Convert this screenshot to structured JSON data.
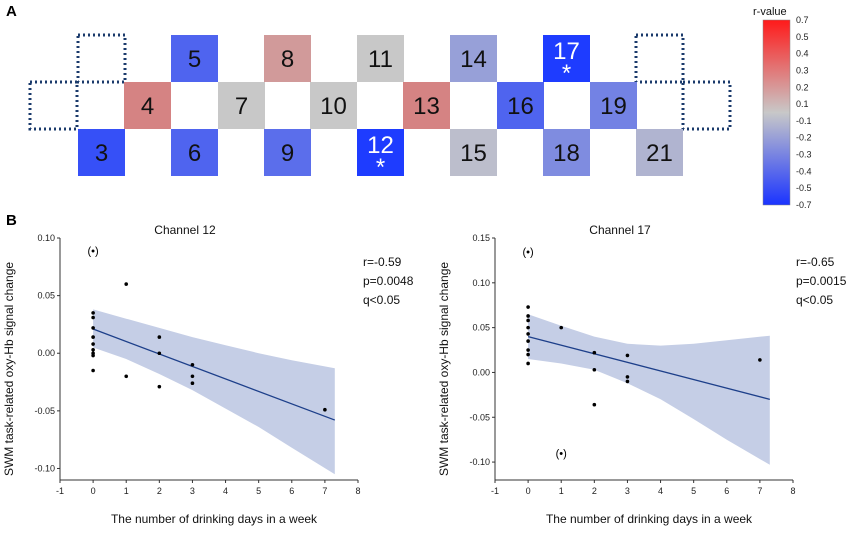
{
  "panel_a": {
    "label": "A",
    "colorbar": {
      "title": "r-value",
      "ticks": [
        "0.7",
        "0.5",
        "0.4",
        "0.3",
        "0.2",
        "0.1",
        "-0.1",
        "-0.2",
        "-0.3",
        "-0.4",
        "-0.5",
        "-0.7"
      ]
    },
    "channels": [
      {
        "id": "3",
        "r": -0.6,
        "star": false
      },
      {
        "id": "4",
        "r": 0.3,
        "star": false
      },
      {
        "id": "5",
        "r": -0.5,
        "star": false
      },
      {
        "id": "6",
        "r": -0.5,
        "star": false
      },
      {
        "id": "7",
        "r": 0.0,
        "star": false
      },
      {
        "id": "8",
        "r": 0.2,
        "star": false
      },
      {
        "id": "9",
        "r": -0.45,
        "star": false
      },
      {
        "id": "10",
        "r": 0.0,
        "star": false
      },
      {
        "id": "11",
        "r": 0.0,
        "star": false
      },
      {
        "id": "12",
        "r": -0.7,
        "star": true,
        "star_text": "*"
      },
      {
        "id": "13",
        "r": 0.3,
        "star": false
      },
      {
        "id": "14",
        "r": -0.2,
        "star": false
      },
      {
        "id": "15",
        "r": -0.05,
        "star": false
      },
      {
        "id": "16",
        "r": -0.5,
        "star": false
      },
      {
        "id": "17",
        "r": -0.7,
        "star": true,
        "star_text": "*"
      },
      {
        "id": "18",
        "r": -0.3,
        "star": false
      },
      {
        "id": "19",
        "r": -0.35,
        "star": false
      },
      {
        "id": "21",
        "r": -0.1,
        "star": false
      }
    ]
  },
  "panel_b": {
    "label": "B"
  },
  "chart_data": [
    {
      "type": "scatter",
      "title": "Channel 12",
      "xlabel": "The number of drinking days in a week",
      "ylabel": "SWM task-related oxy-Hb signal change",
      "xlim": [
        -1,
        8
      ],
      "ylim": [
        -0.11,
        0.1
      ],
      "xticks": [
        -1,
        0,
        1,
        2,
        3,
        4,
        5,
        6,
        7,
        8
      ],
      "yticks": [
        -0.1,
        -0.05,
        0.0,
        0.05,
        0.1
      ],
      "ytick_labels": [
        "-0.10",
        "-0.05",
        "0.00",
        "0.05",
        "0.10"
      ],
      "points": [
        {
          "x": 0,
          "y": 0.035
        },
        {
          "x": 0,
          "y": 0.031
        },
        {
          "x": 0,
          "y": 0.022
        },
        {
          "x": 0,
          "y": 0.014
        },
        {
          "x": 0,
          "y": 0.008
        },
        {
          "x": 0,
          "y": 0.003
        },
        {
          "x": 0,
          "y": 0.0
        },
        {
          "x": 0,
          "y": -0.002
        },
        {
          "x": 0,
          "y": -0.015
        },
        {
          "x": 1,
          "y": 0.06
        },
        {
          "x": 1,
          "y": -0.02
        },
        {
          "x": 2,
          "y": 0.014
        },
        {
          "x": 2,
          "y": 0.0
        },
        {
          "x": 2,
          "y": -0.029
        },
        {
          "x": 3,
          "y": -0.01
        },
        {
          "x": 3,
          "y": -0.02
        },
        {
          "x": 3,
          "y": -0.026
        },
        {
          "x": 7,
          "y": -0.049
        }
      ],
      "outliers": [
        {
          "x": 0,
          "y": 0.089,
          "label": "(•)"
        }
      ],
      "fit_line": {
        "x": [
          0,
          7.3
        ],
        "y": [
          0.021,
          -0.058
        ]
      },
      "ci_upper": {
        "x": [
          0,
          1,
          2,
          3,
          4,
          5,
          6,
          7.3
        ],
        "y": [
          0.038,
          0.03,
          0.022,
          0.014,
          0.007,
          0.0,
          -0.006,
          -0.013
        ]
      },
      "ci_lower": {
        "x": [
          0,
          1,
          2,
          3,
          4,
          5,
          6,
          7.3
        ],
        "y": [
          0.005,
          -0.005,
          -0.018,
          -0.032,
          -0.048,
          -0.064,
          -0.082,
          -0.105
        ]
      },
      "stats": [
        "r=-0.59",
        "p=0.0048",
        "q<0.05"
      ]
    },
    {
      "type": "scatter",
      "title": "Channel 17",
      "xlabel": "The number of drinking days in a week",
      "ylabel": "SWM task-related oxy-Hb signal change",
      "xlim": [
        -1,
        8
      ],
      "ylim": [
        -0.12,
        0.15
      ],
      "xticks": [
        -1,
        0,
        1,
        2,
        3,
        4,
        5,
        6,
        7,
        8
      ],
      "yticks": [
        -0.1,
        -0.05,
        0.0,
        0.05,
        0.1,
        0.15
      ],
      "ytick_labels": [
        "-0.10",
        "-0.05",
        "0.00",
        "0.05",
        "0.10",
        "0.15"
      ],
      "points": [
        {
          "x": 0,
          "y": 0.073
        },
        {
          "x": 0,
          "y": 0.063
        },
        {
          "x": 0,
          "y": 0.058
        },
        {
          "x": 0,
          "y": 0.05
        },
        {
          "x": 0,
          "y": 0.043
        },
        {
          "x": 0,
          "y": 0.035
        },
        {
          "x": 0,
          "y": 0.025
        },
        {
          "x": 0,
          "y": 0.02
        },
        {
          "x": 0,
          "y": 0.01
        },
        {
          "x": 1,
          "y": 0.05
        },
        {
          "x": 2,
          "y": 0.022
        },
        {
          "x": 2,
          "y": 0.003
        },
        {
          "x": 2,
          "y": -0.036
        },
        {
          "x": 3,
          "y": 0.019
        },
        {
          "x": 3,
          "y": -0.005
        },
        {
          "x": 3,
          "y": -0.01
        },
        {
          "x": 7,
          "y": 0.014
        }
      ],
      "outliers": [
        {
          "x": 0,
          "y": 0.135,
          "label": "(•)"
        },
        {
          "x": 1,
          "y": -0.09,
          "label": "(•)"
        }
      ],
      "fit_line": {
        "x": [
          0,
          7.3
        ],
        "y": [
          0.04,
          -0.03
        ]
      },
      "ci_upper": {
        "x": [
          0,
          1,
          2,
          3,
          4,
          5,
          6,
          7.3
        ],
        "y": [
          0.065,
          0.052,
          0.04,
          0.032,
          0.03,
          0.032,
          0.036,
          0.041
        ]
      },
      "ci_lower": {
        "x": [
          0,
          1,
          2,
          3,
          4,
          5,
          6,
          7.3
        ],
        "y": [
          0.015,
          0.01,
          0.003,
          -0.012,
          -0.03,
          -0.052,
          -0.075,
          -0.103
        ]
      },
      "stats": [
        "r=-0.65",
        "p=0.0015",
        "q<0.05"
      ]
    }
  ]
}
